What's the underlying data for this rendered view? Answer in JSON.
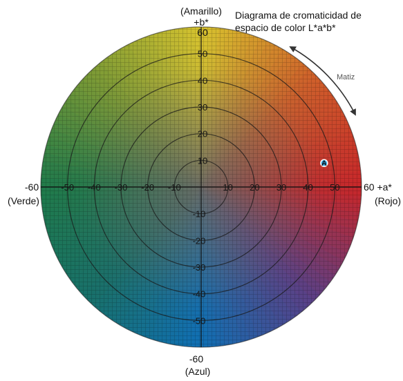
{
  "title_line1": "Diagrama de cromaticidad de",
  "title_line2": "espacio de color L*a*b*",
  "axes": {
    "b_positive_name": "(Amarillo)",
    "b_positive_symbol": "+b*",
    "b_positive_end": "60",
    "b_negative_end": "-60",
    "b_negative_name": "(Azul)",
    "a_negative_end": "-60",
    "a_negative_name": "(Verde)",
    "a_positive_end": "60 +a*",
    "a_positive_name": "(Rojo)"
  },
  "hue_label": "Matiz",
  "point": {
    "label": "A",
    "a": 46,
    "b": 9,
    "color": "#38a9e6"
  },
  "range": 60,
  "ring_step": 10,
  "a_ticks": [
    "-50",
    "-40",
    "-30",
    "-20",
    "-10",
    "10",
    "20",
    "30",
    "40",
    "50"
  ],
  "a_tick_values": [
    -50,
    -40,
    -30,
    -20,
    -10,
    10,
    20,
    30,
    40,
    50
  ],
  "b_ticks": [
    "50",
    "40",
    "30",
    "20",
    "10",
    "-10",
    "-20",
    "-30",
    "-40",
    "-50"
  ],
  "b_tick_values": [
    50,
    40,
    30,
    20,
    10,
    -10,
    -20,
    -30,
    -40,
    -50
  ],
  "colors": {
    "yellow": "#d8c42e",
    "red": "#c8262a",
    "green": "#1f7a4a",
    "blue": "#0f6fb4",
    "center": "#6b6b66"
  }
}
